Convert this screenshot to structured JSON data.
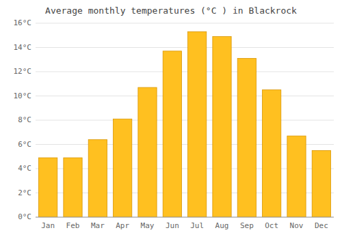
{
  "chart_data": {
    "type": "bar",
    "title": "Average monthly temperatures (°C ) in Blackrock",
    "categories": [
      "Jan",
      "Feb",
      "Mar",
      "Apr",
      "May",
      "Jun",
      "Jul",
      "Aug",
      "Sep",
      "Oct",
      "Nov",
      "Dec"
    ],
    "values": [
      4.9,
      4.9,
      6.4,
      8.1,
      10.7,
      13.7,
      15.3,
      14.9,
      13.1,
      10.5,
      6.7,
      5.5
    ],
    "color": "#FFC020",
    "ylim": [
      0,
      16
    ],
    "yticks": [
      {
        "value": 0,
        "label": "0°C"
      },
      {
        "value": 2,
        "label": "2°C"
      },
      {
        "value": 4,
        "label": "4°C"
      },
      {
        "value": 6,
        "label": "6°C"
      },
      {
        "value": 8,
        "label": "8°C"
      },
      {
        "value": 10,
        "label": "10°C"
      },
      {
        "value": 12,
        "label": "12°C"
      },
      {
        "value": 14,
        "label": "14°C"
      },
      {
        "value": 16,
        "label": "16°C"
      }
    ],
    "grid": true
  }
}
